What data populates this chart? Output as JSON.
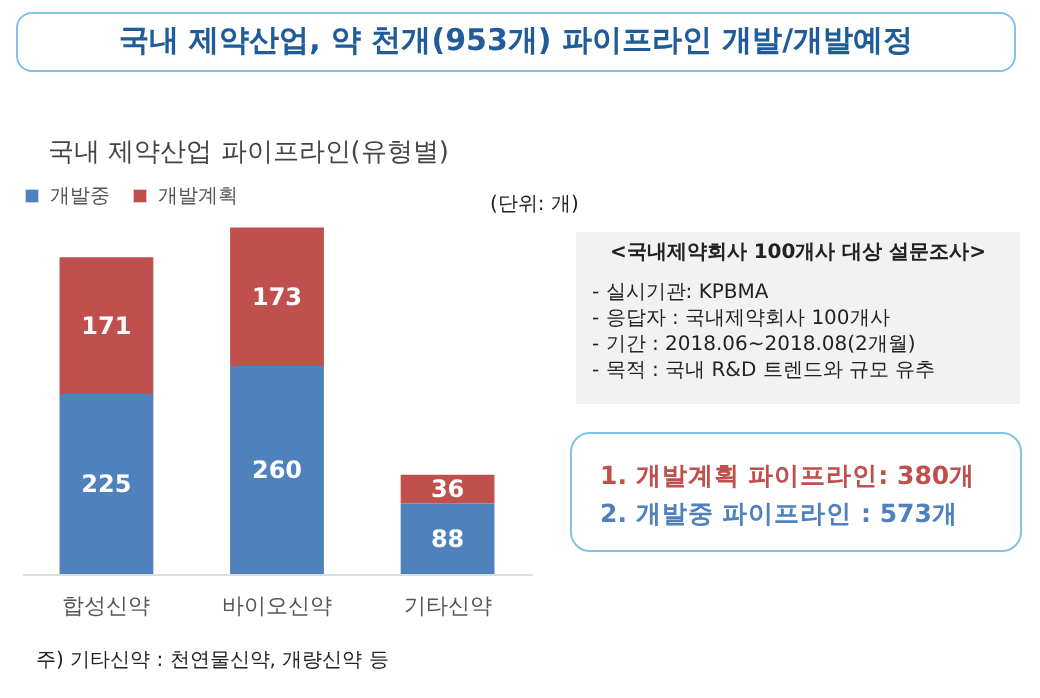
{
  "chart_data": {
    "type": "bar",
    "title": "국내 제약산업, 약 천개(953개) 파이프라인 개발/개발예정",
    "subtitle": "국내 제약산업 파이프라인(유형별)",
    "categories": [
      "합성신약",
      "바이오신약",
      "기타신약"
    ],
    "series": [
      {
        "name": "개발중",
        "color": "#4f81bd",
        "values": [
          225,
          260,
          88
        ]
      },
      {
        "name": "개발계획",
        "color": "#c0504d",
        "values": [
          171,
          173,
          36
        ]
      }
    ],
    "stacked": true,
    "data_labels": true,
    "legend": "top",
    "tick_labels": "x",
    "annotations": [
      "(단위: 개)",
      "<국내제약회사 100개사 대상 설문조사>",
      "-   실시기관: KPBMA",
      "-   응답자 : 국내제약회사 100개사",
      "-   기간 : 2018.06~2018.08(2개월)",
      "-   목적 : 국내 R&D 트렌드와 규모 유추",
      "1. 개발계획 파이프라인: 380개",
      "2. 개발중 파이프라인 : 573개",
      "주) 기타신약 : 천연물신약, 개량신약 등"
    ]
  }
}
